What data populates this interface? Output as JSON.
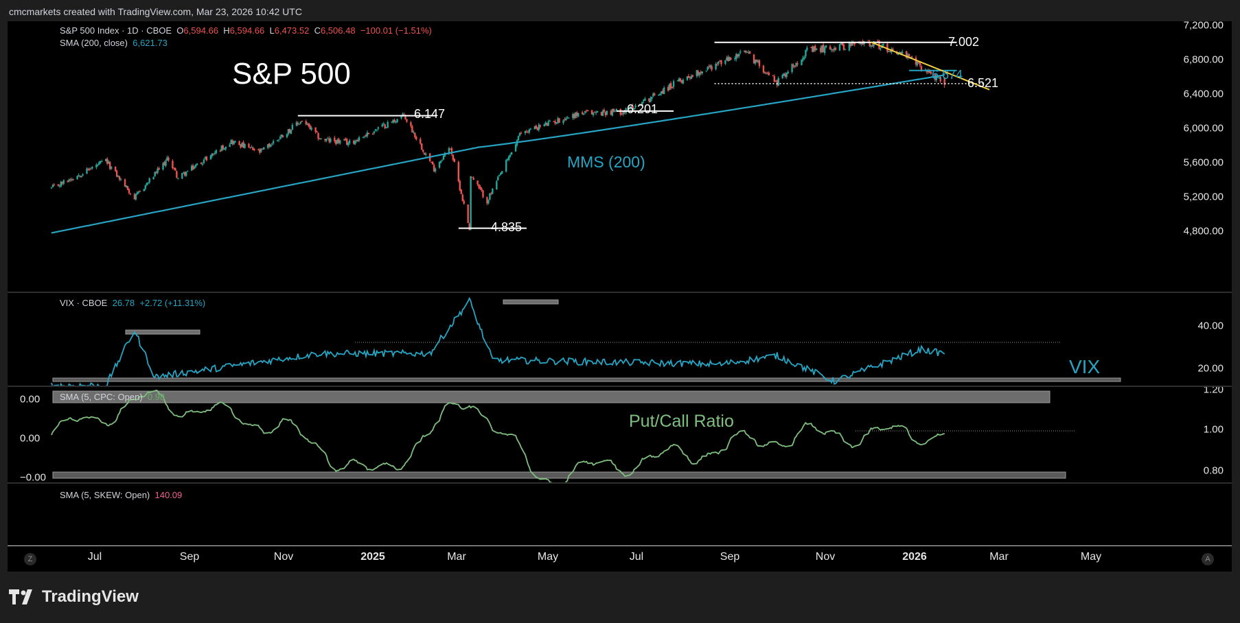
{
  "header": "cmcmarkets created with TradingView.com, Mar 23, 2026 10:42 UTC",
  "main": {
    "symbol": "S&P 500 Index · 1D · CBOE",
    "o_label": "O",
    "o": "6,594.66",
    "h_label": "H",
    "h": "6,594.66",
    "l_label": "L",
    "l": "6,473.52",
    "c_label": "C",
    "c": "6,506.48",
    "change": "−100.01 (−1.51%)",
    "sma_label": "SMA (200, close)",
    "sma_value": "6,621.73",
    "title": "S&P 500",
    "mms_label": "MMS (200)",
    "levels": {
      "l7002": "7.002",
      "l6674": "6.674",
      "l6521": "6.521",
      "l6201": "6.201",
      "l6147": "6.147",
      "l4835": "4.835"
    },
    "yticks": [
      "7,200.00",
      "6,800.00",
      "6,400.00",
      "6,000.00",
      "5,600.00",
      "5,200.00",
      "4,800.00"
    ]
  },
  "vix": {
    "legend": "VIX · CBOE",
    "value": "26.78",
    "change": "+2.72 (+11.31%)",
    "label": "VIX",
    "yticks": [
      "40.00",
      "20.00"
    ]
  },
  "pcr": {
    "legend": "SMA (5, CPC: Open)",
    "value": "0.98",
    "label": "Put/Call Ratio",
    "yticks_right": [
      "1.20",
      "1.00",
      "0.80"
    ],
    "yticks_left": [
      "0.00",
      "0.00",
      "−0.00"
    ]
  },
  "skew": {
    "legend": "SMA (5, SKEW: Open)",
    "value": "140.09"
  },
  "xaxis": {
    "labels": [
      "Jul",
      "Sep",
      "Nov",
      "2025",
      "Mar",
      "May",
      "Jul",
      "Sep",
      "Nov",
      "2026",
      "Mar",
      "May"
    ],
    "bold": [
      false,
      false,
      false,
      true,
      false,
      false,
      false,
      false,
      false,
      true,
      false,
      false
    ],
    "left_btn": "Z",
    "right_btn": "A"
  },
  "logo": "TradingView",
  "colors": {
    "up": "#26a69a",
    "down": "#ef5350",
    "sma": "#26a6c4",
    "vix": "#26a6c4",
    "pcr": "#7fbf7f",
    "trend": "#f5d142",
    "level": "#ffffff"
  },
  "chart_data": [
    {
      "type": "candlestick",
      "title": "S&P 500",
      "ylim": [
        4650,
        7300
      ],
      "x": "2024-06 to 2026-03-23 (daily)",
      "anchors": [
        {
          "date": "2024-06-05",
          "close": 5300
        },
        {
          "date": "2024-07-15",
          "close": 5620
        },
        {
          "date": "2024-08-05",
          "close": 5186
        },
        {
          "date": "2024-08-30",
          "close": 5650
        },
        {
          "date": "2024-09-06",
          "close": 5420
        },
        {
          "date": "2024-10-15",
          "close": 5850
        },
        {
          "date": "2024-11-05",
          "close": 5720
        },
        {
          "date": "2024-12-06",
          "close": 6090
        },
        {
          "date": "2024-12-20",
          "close": 5870
        },
        {
          "date": "2025-01-10",
          "close": 5830
        },
        {
          "date": "2025-02-19",
          "close": 6147
        },
        {
          "date": "2025-03-13",
          "close": 5530
        },
        {
          "date": "2025-03-25",
          "close": 5780
        },
        {
          "date": "2025-04-08",
          "close": 4835
        },
        {
          "date": "2025-04-09",
          "close": 5450
        },
        {
          "date": "2025-04-21",
          "close": 5150
        },
        {
          "date": "2025-05-16",
          "close": 5950
        },
        {
          "date": "2025-06-27",
          "close": 6170
        },
        {
          "date": "2025-08-01",
          "close": 6201
        },
        {
          "date": "2025-09-15",
          "close": 6600
        },
        {
          "date": "2025-10-28",
          "close": 6890
        },
        {
          "date": "2025-11-20",
          "close": 6540
        },
        {
          "date": "2025-12-12",
          "close": 6900
        },
        {
          "date": "2026-01-27",
          "close": 7002
        },
        {
          "date": "2026-02-20",
          "close": 6870
        },
        {
          "date": "2026-03-12",
          "close": 6650
        },
        {
          "date": "2026-03-23",
          "close": 6506.48
        }
      ],
      "last": {
        "open": 6594.66,
        "high": 6594.66,
        "low": 6473.52,
        "close": 6506.48,
        "change": -100.01,
        "change_pct": -1.51
      },
      "sma200": {
        "start": 4780,
        "mid_2025_04": 5780,
        "end": 6621.73
      },
      "levels": [
        7002,
        6674,
        6521,
        6201,
        6147,
        4835
      ]
    },
    {
      "type": "line",
      "name": "VIX",
      "ylim": [
        9,
        55
      ],
      "anchors": [
        {
          "date": "2024-06-01",
          "value": 12
        },
        {
          "date": "2024-07-15",
          "value": 12
        },
        {
          "date": "2024-08-05",
          "value": 38
        },
        {
          "date": "2024-08-20",
          "value": 16
        },
        {
          "date": "2024-12-18",
          "value": 27
        },
        {
          "date": "2025-03-10",
          "value": 27
        },
        {
          "date": "2025-04-08",
          "value": 52
        },
        {
          "date": "2025-04-25",
          "value": 24
        },
        {
          "date": "2025-10-10",
          "value": 22
        },
        {
          "date": "2025-11-20",
          "value": 26
        },
        {
          "date": "2026-01-01",
          "value": 14
        },
        {
          "date": "2026-03-06",
          "value": 29
        },
        {
          "date": "2026-03-23",
          "value": 26.78
        }
      ],
      "last": 26.78,
      "change": 2.72,
      "change_pct": 11.31
    },
    {
      "type": "line",
      "name": "SMA (5, CPC: Open)",
      "ylim": [
        0.68,
        1.21
      ],
      "anchors": [
        {
          "date": "2024-06-01",
          "value": 0.97
        },
        {
          "date": "2024-08-12",
          "value": 1.15
        },
        {
          "date": "2024-11-20",
          "value": 1.01
        },
        {
          "date": "2025-01-27",
          "value": 0.76
        },
        {
          "date": "2025-04-08",
          "value": 1.16
        },
        {
          "date": "2025-05-27",
          "value": 0.76
        },
        {
          "date": "2025-12-01",
          "value": 0.97
        },
        {
          "date": "2026-03-23",
          "value": 0.98
        }
      ],
      "last": 0.98
    },
    {
      "type": "line",
      "name": "SMA (5, SKEW: Open)",
      "last": 140.09
    }
  ]
}
